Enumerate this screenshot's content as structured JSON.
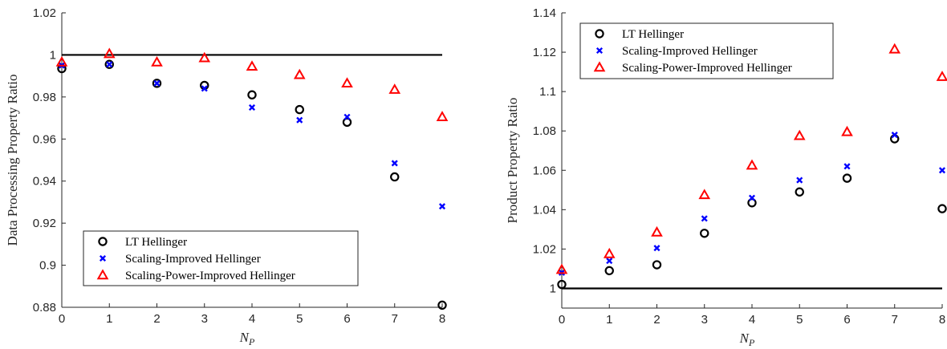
{
  "chart_data": [
    {
      "type": "scatter",
      "xlabel": "N",
      "xlabel_sub": "P",
      "ylabel": "Data Processing Property Ratio",
      "xlim": [
        0,
        8
      ],
      "ylim": [
        0.88,
        1.02
      ],
      "xticks": [
        "0",
        "1",
        "2",
        "3",
        "4",
        "5",
        "6",
        "7",
        "8"
      ],
      "yticks": [
        "0.88",
        "0.9",
        "0.92",
        "0.94",
        "0.96",
        "0.98",
        "1",
        "1.02"
      ],
      "reference_line": 1,
      "legend_position": "bottom-left",
      "x": [
        0,
        1,
        2,
        3,
        4,
        5,
        6,
        7,
        8
      ],
      "series": [
        {
          "name": "LT Hellinger",
          "marker": "circle",
          "color": "#000000",
          "values": [
            0.9935,
            0.9955,
            0.9865,
            0.9855,
            0.981,
            0.974,
            0.968,
            0.942,
            0.881
          ]
        },
        {
          "name": "Scaling-Improved Hellinger",
          "marker": "x",
          "color": "#0000ff",
          "values": [
            0.995,
            0.9955,
            0.9865,
            0.984,
            0.975,
            0.969,
            0.9705,
            0.9485,
            0.928
          ]
        },
        {
          "name": "Scaling-Power-Improved Hellinger",
          "marker": "triangle",
          "color": "#ff0000",
          "values": [
            0.9965,
            1.0005,
            0.9965,
            0.9985,
            0.9945,
            0.9905,
            0.9865,
            0.9835,
            0.9705
          ]
        }
      ]
    },
    {
      "type": "scatter",
      "xlabel": "N",
      "xlabel_sub": "P",
      "ylabel": "Product Property Ratio",
      "xlim": [
        0,
        8
      ],
      "ylim": [
        0.99,
        1.14
      ],
      "xticks": [
        "0",
        "1",
        "2",
        "3",
        "4",
        "5",
        "6",
        "7",
        "8"
      ],
      "yticks": [
        "1",
        "1.02",
        "1.04",
        "1.06",
        "1.08",
        "1.1",
        "1.12",
        "1.14"
      ],
      "reference_line": 1,
      "legend_position": "top-left",
      "x": [
        0,
        1,
        2,
        3,
        4,
        5,
        6,
        7,
        8
      ],
      "series": [
        {
          "name": "LT Hellinger",
          "marker": "circle",
          "color": "#000000",
          "values": [
            1.002,
            1.009,
            1.012,
            1.028,
            1.0435,
            1.049,
            1.056,
            1.076,
            1.0405
          ]
        },
        {
          "name": "Scaling-Improved Hellinger",
          "marker": "x",
          "color": "#0000ff",
          "values": [
            1.008,
            1.014,
            1.0205,
            1.0355,
            1.046,
            1.055,
            1.062,
            1.078,
            1.06
          ]
        },
        {
          "name": "Scaling-Power-Improved Hellinger",
          "marker": "triangle",
          "color": "#ff0000",
          "values": [
            1.0095,
            1.0175,
            1.0285,
            1.0475,
            1.0625,
            1.0775,
            1.0795,
            1.1215,
            1.1075
          ]
        }
      ]
    }
  ]
}
